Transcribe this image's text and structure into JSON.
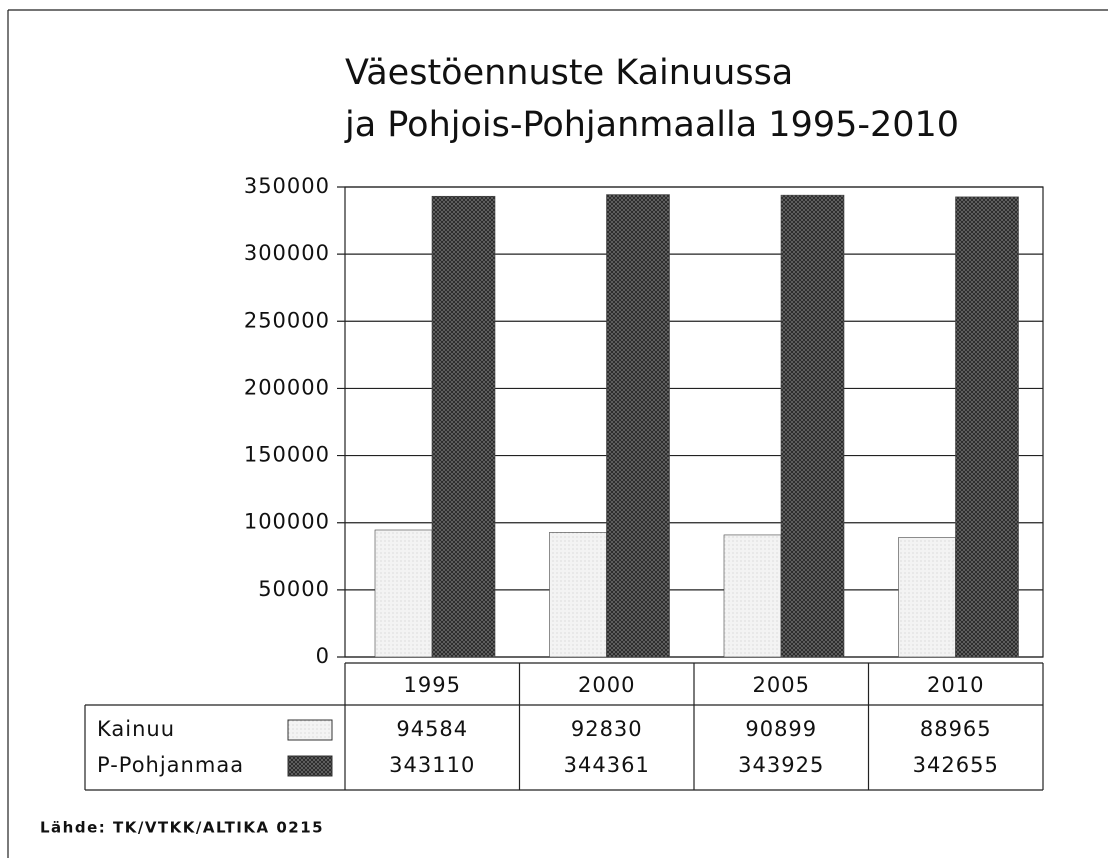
{
  "chart_data": {
    "type": "bar",
    "title": [
      "Väestöennuste Kainuussa",
      "ja Pohjois-Pohjanmaalla 1995-2010"
    ],
    "categories": [
      "1995",
      "2000",
      "2005",
      "2010"
    ],
    "series": [
      {
        "name": "Kainuu",
        "color": "#f3f3f3",
        "values": [
          94584,
          92830,
          90899,
          88965
        ]
      },
      {
        "name": "P-Pohjanmaa",
        "color": "#6a6a6a",
        "values": [
          343110,
          344361,
          343925,
          342655
        ]
      }
    ],
    "ylim": [
      0,
      350000
    ],
    "yticks": [
      0,
      50000,
      100000,
      150000,
      200000,
      250000,
      300000,
      350000
    ],
    "grid": true,
    "source": "Lähde: TK/VTKK/ALTIKA 0215"
  }
}
